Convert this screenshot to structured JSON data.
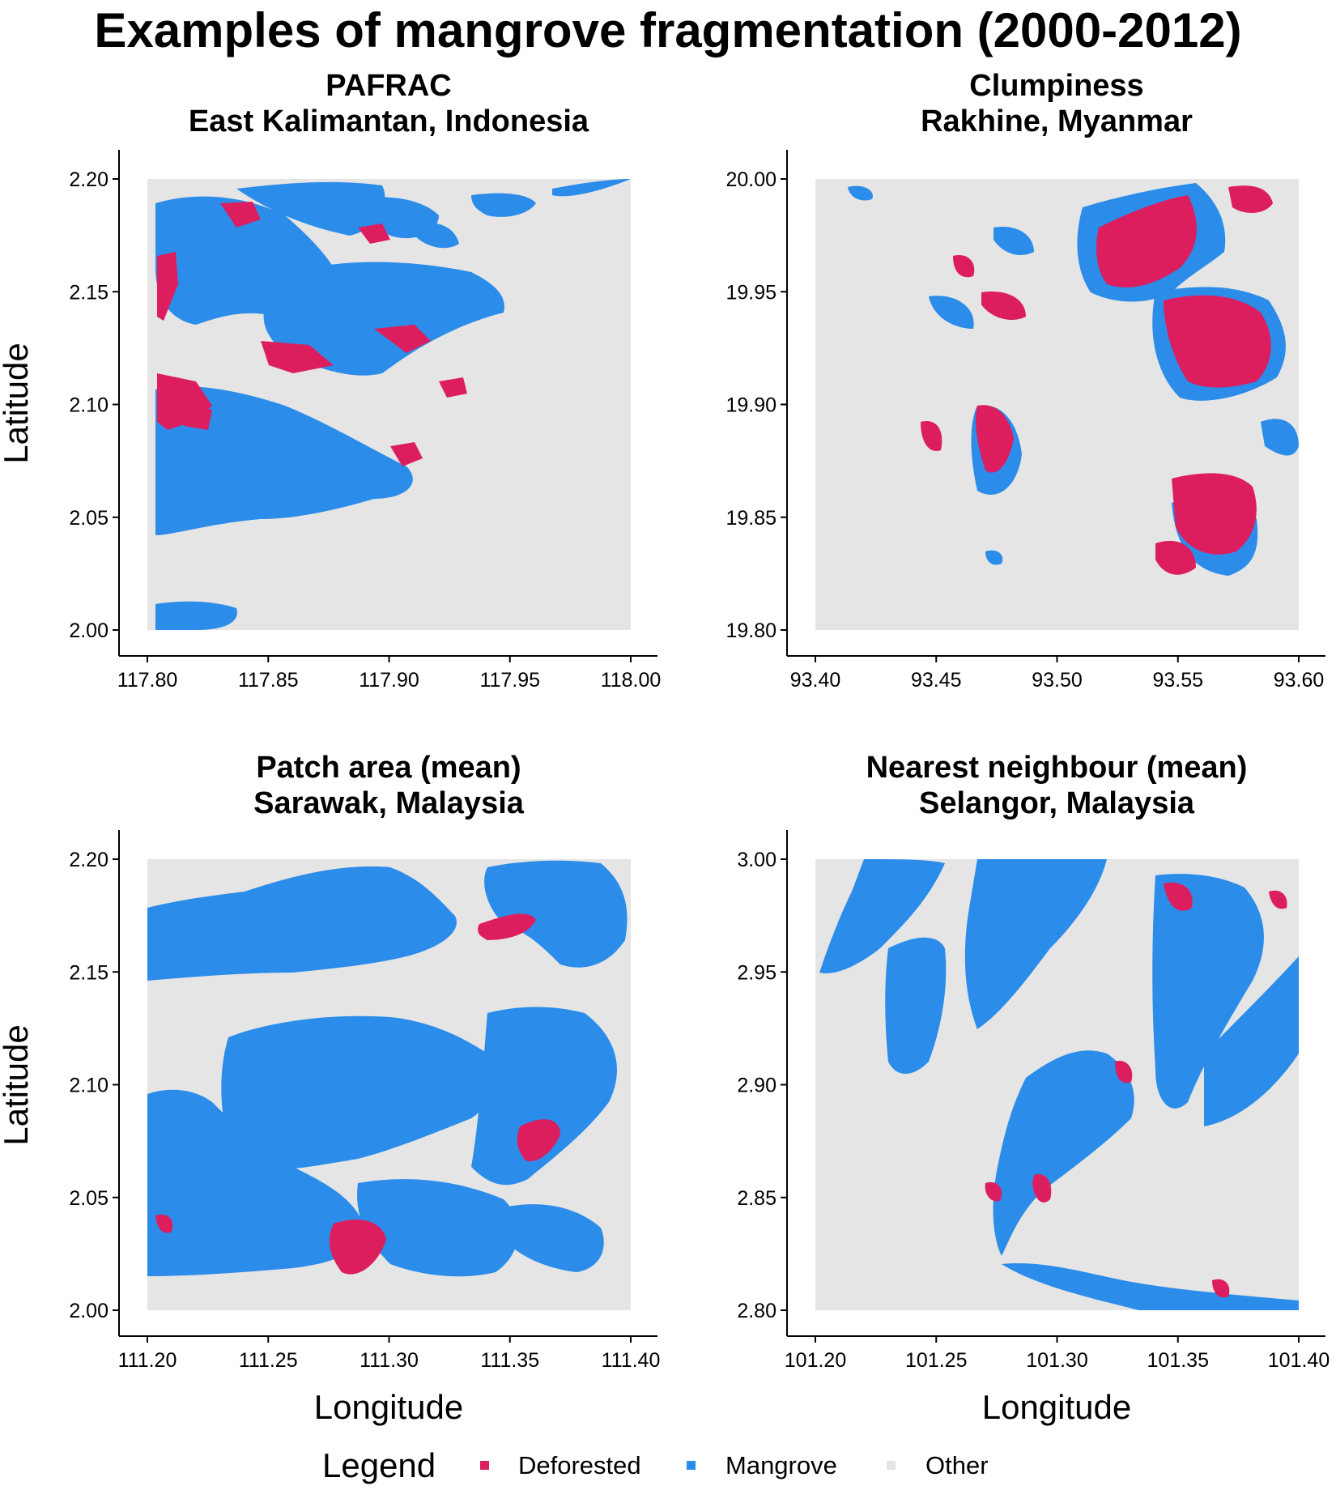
{
  "title": "Examples of mangrove fragmentation (2000-2012)",
  "colors": {
    "deforested": "#dc1e5f",
    "mangrove": "#2b8cea",
    "other": "#e5e5e5"
  },
  "axis_labels": {
    "x": "Longitude",
    "y": "Latitude"
  },
  "legend": {
    "title": "Legend",
    "items": [
      {
        "label": "Deforested",
        "color": "#dc1e5f"
      },
      {
        "label": "Mangrove",
        "color": "#2b8cea"
      },
      {
        "label": "Other",
        "color": "#e5e5e5"
      }
    ]
  },
  "panels": [
    {
      "metric": "PAFRAC",
      "region": "East Kalimantan, Indonesia",
      "x_ticks": [
        "117.80",
        "117.85",
        "117.90",
        "117.95",
        "118.00"
      ],
      "y_ticks": [
        "2.20",
        "2.15",
        "2.10",
        "2.05",
        "2.00"
      ]
    },
    {
      "metric": "Clumpiness",
      "region": "Rakhine, Myanmar",
      "x_ticks": [
        "93.40",
        "93.45",
        "93.50",
        "93.55",
        "93.60"
      ],
      "y_ticks": [
        "20.00",
        "19.95",
        "19.90",
        "19.85",
        "19.80"
      ]
    },
    {
      "metric": "Patch area (mean)",
      "region": "Sarawak, Malaysia",
      "x_ticks": [
        "111.20",
        "111.25",
        "111.30",
        "111.35",
        "111.40"
      ],
      "y_ticks": [
        "2.20",
        "2.15",
        "2.10",
        "2.05",
        "2.00"
      ]
    },
    {
      "metric": "Nearest neighbour (mean)",
      "region": "Selangor, Malaysia",
      "x_ticks": [
        "101.20",
        "101.25",
        "101.30",
        "101.35",
        "101.40"
      ],
      "y_ticks": [
        "3.00",
        "2.95",
        "2.90",
        "2.85",
        "2.80"
      ]
    }
  ]
}
